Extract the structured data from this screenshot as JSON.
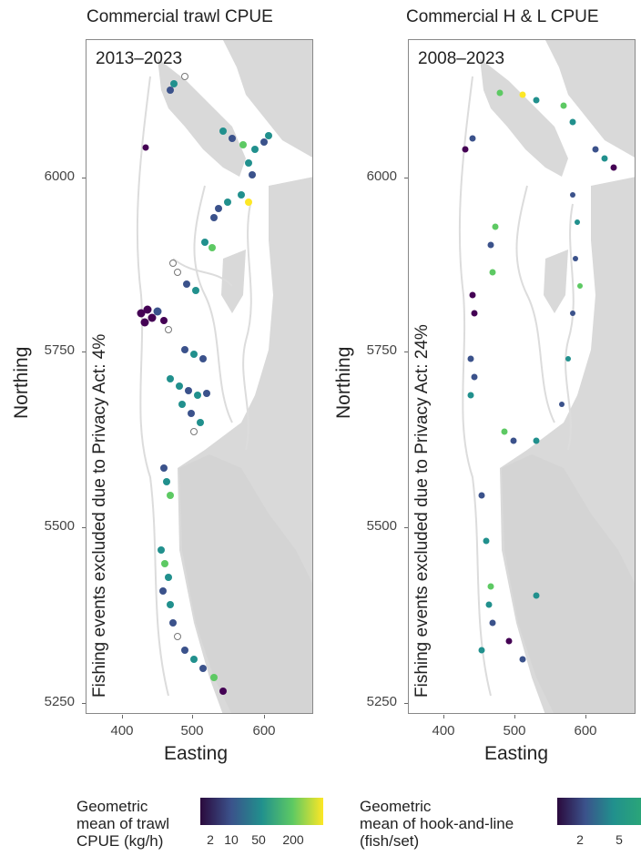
{
  "panels": [
    {
      "title": "Commercial trawl CPUE",
      "period": "2013–2023",
      "privacy_note": "Fishing events excluded due to Privacy Act: 4%",
      "legend": {
        "title_lines": [
          "Geometric",
          "mean of trawl",
          "CPUE (kg/h)"
        ],
        "ticks": [
          "2",
          "10",
          "50",
          "200"
        ]
      }
    },
    {
      "title": "Commercial H & L CPUE",
      "period": "2008–2023",
      "privacy_note": "Fishing events excluded due to Privacy Act: 24%",
      "legend": {
        "title_lines": [
          "Geometric",
          "mean of hook-and-line",
          "(fish/set)"
        ],
        "ticks": [
          "2",
          "5"
        ]
      }
    }
  ],
  "axes": {
    "ylabel": "Northing",
    "xlabel": "Easting",
    "y_ticks": [
      "6000",
      "5750",
      "5500",
      "5250"
    ],
    "x_ticks": [
      "400",
      "500",
      "600"
    ]
  },
  "colors": {
    "land": "#d9d9d9",
    "contour": "#dcdcdc",
    "frame": "#888888",
    "viridis": [
      "#440154",
      "#3b528b",
      "#21908d",
      "#5dc963",
      "#fde725"
    ],
    "excluded_point": "#ffffff"
  }
}
